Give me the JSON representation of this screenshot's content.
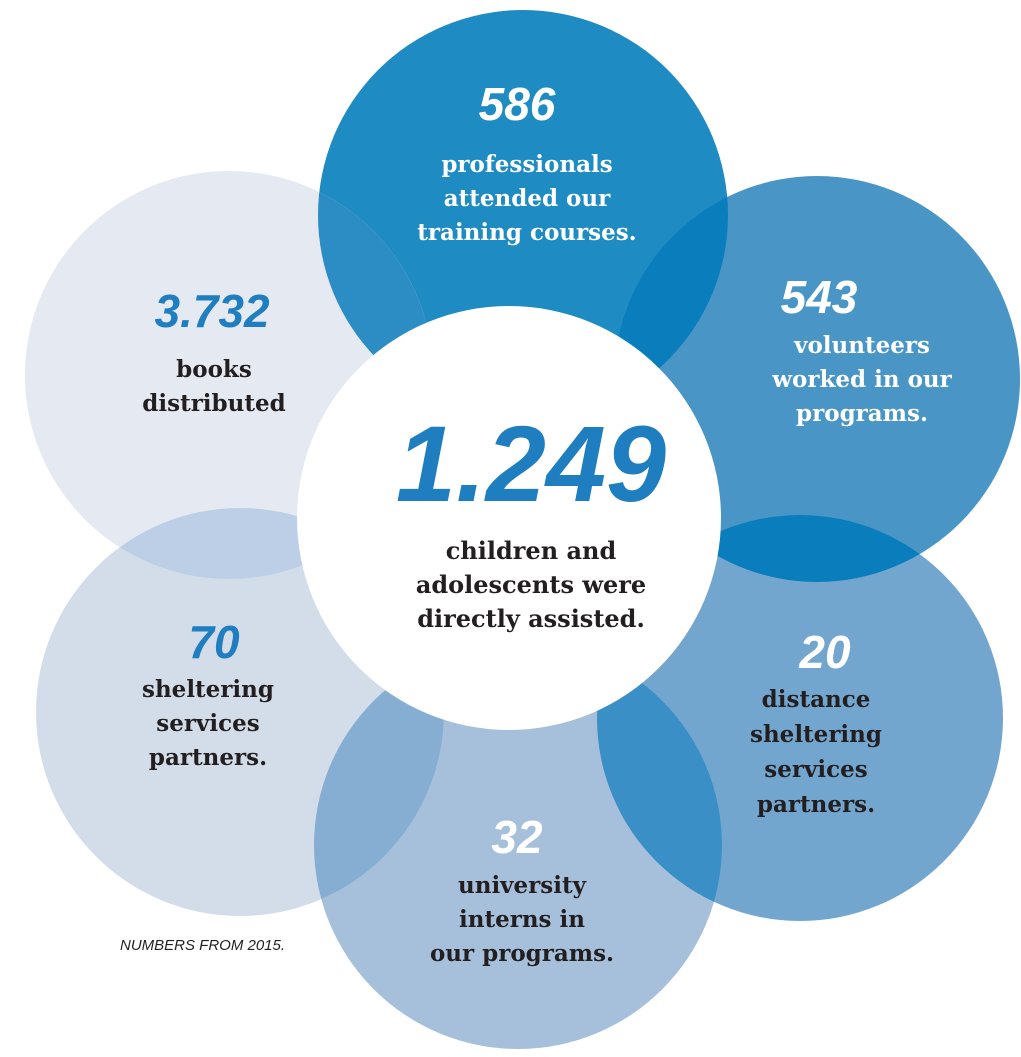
{
  "center": {
    "value": "1.249",
    "lines": [
      "children and",
      "adolescents were",
      "directly assisted."
    ]
  },
  "petals": [
    {
      "id": "trainees",
      "value": "586",
      "lines": [
        "professionals",
        "attended our",
        "training courses."
      ],
      "fill": "#1f8bc3",
      "value_color": "#ffffff",
      "text_color": "#ffffff"
    },
    {
      "id": "volunteers",
      "value": "543",
      "lines": [
        "volunteers",
        "worked in our",
        "programs."
      ],
      "fill": "#4995c6",
      "value_color": "#ffffff",
      "text_color": "#ffffff"
    },
    {
      "id": "distance-partners",
      "value": "20",
      "lines": [
        "distance",
        "sheltering",
        "services",
        "partners."
      ],
      "fill": "#73a6cf",
      "value_color": "#ffffff",
      "text_color": "#231f20"
    },
    {
      "id": "interns",
      "value": "32",
      "lines": [
        "university",
        "interns in",
        "our programs."
      ],
      "fill": "#a6c0dc",
      "value_color": "#ffffff",
      "text_color": "#231f20"
    },
    {
      "id": "sheltering-partners",
      "value": "70",
      "lines": [
        "sheltering",
        "services",
        "partners."
      ],
      "fill": "#d3dde9",
      "value_color": "#1f7ec0",
      "text_color": "#231f20"
    },
    {
      "id": "books",
      "value": "3.732",
      "lines": [
        "books",
        "distributed"
      ],
      "fill": "#e5e9f1",
      "value_color": "#1f7ec0",
      "text_color": "#231f20"
    }
  ],
  "overlaps": [
    {
      "between": [
        "trainees",
        "books"
      ],
      "fill": "#2b8dc4"
    },
    {
      "between": [
        "trainees",
        "volunteers"
      ],
      "fill": "#0a7dbc"
    },
    {
      "between": [
        "volunteers",
        "distance-partners"
      ],
      "fill": "#0a7dbc"
    },
    {
      "between": [
        "distance-partners",
        "interns"
      ],
      "fill": "#398fc6"
    },
    {
      "between": [
        "interns",
        "sheltering-partners"
      ],
      "fill": "#86aed2"
    },
    {
      "between": [
        "sheltering-partners",
        "books"
      ],
      "fill": "#bccfe6"
    }
  ],
  "colors": {
    "center_value": "#1f7ec0",
    "center_text": "#231f20",
    "center_fill": "#ffffff",
    "footnote": "#231f20"
  },
  "footnote": "NUMBERS FROM 2015."
}
